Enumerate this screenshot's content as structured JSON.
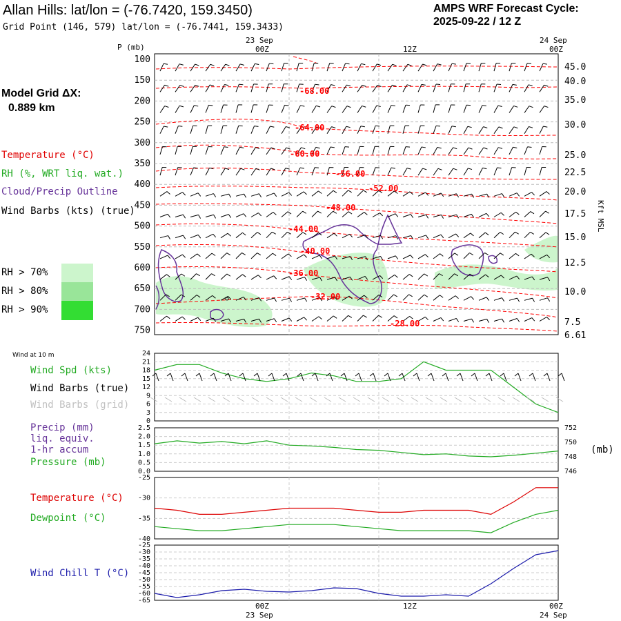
{
  "header": {
    "title": "Allan Hills:  lat/lon = (-76.7420, 159.3450)",
    "grid_point": "Grid Point (146, 579) lat/lon = (-76.7441, 159.3433)",
    "cycle_line1": "AMPS WRF Forecast Cycle:",
    "cycle_line2": "2025-09-22 / 12  Z"
  },
  "model_grid": {
    "label": "Model Grid ΔX:",
    "value": "0.889 km"
  },
  "legend": {
    "temperature": "Temperature (°C)",
    "rh": "RH (%, WRT liq. wat.)",
    "cloud": "Cloud/Precip Outline",
    "wind_barbs": "Wind Barbs (kts) (true)",
    "rh70": "RH > 70%",
    "rh80": "RH > 80%",
    "rh90": "RH > 90%",
    "colors": {
      "temperature": "#ff0000",
      "rh": "#22aa22",
      "cloud": "#663399",
      "rh70": "#ccf5cc",
      "rh80": "#99e599",
      "rh90": "#33dd33"
    }
  },
  "time_axis": {
    "top_dates": [
      "23 Sep",
      "24 Sep"
    ],
    "top_labels": [
      "00Z",
      "12Z",
      "00Z"
    ],
    "bottom_labels": [
      "00Z",
      "12Z",
      "00Z"
    ],
    "bottom_dates": [
      "23 Sep",
      "24 Sep"
    ]
  },
  "xsection": {
    "p_unit": "P (mb)",
    "pressure_ticks": [
      "100",
      "150",
      "200",
      "250",
      "300",
      "350",
      "400",
      "450",
      "500",
      "550",
      "600",
      "650",
      "700",
      "750"
    ],
    "height_ticks": [
      "45.0",
      "40.0",
      "35.0",
      "30.0",
      "25.0",
      "22.5",
      "20.0",
      "17.5",
      "15.0",
      "12.5",
      "10.0",
      "7.5",
      "6.61"
    ],
    "height_unit": "Kft MSL",
    "temp_labels": [
      "-68.00",
      "-64.00",
      "-60.00",
      "-56.00",
      "-52.00",
      "-48.00",
      "-44.00",
      "-40.00",
      "-36.00",
      "-32.00",
      "-28.00"
    ]
  },
  "wind_panel": {
    "title": "Wind at 10 m",
    "spd_label": "Wind Spd (kts)",
    "barbs_true": "Wind Barbs (true)",
    "barbs_grid": "Wind Barbs (grid)",
    "yticks": [
      "24",
      "21",
      "18",
      "15",
      "12",
      "9",
      "6",
      "3",
      "0"
    ]
  },
  "precip_panel": {
    "precip_label": "Precip (mm)",
    "liq": "liq. equiv.",
    "accum": "1-hr accum",
    "pressure_label": "Pressure (mb)",
    "left_ticks": [
      "2.5",
      "2.0",
      "1.5",
      "1.0",
      "0.5",
      "0.0"
    ],
    "right_ticks": [
      "752",
      "750",
      "748",
      "746"
    ],
    "unit": "(mb)"
  },
  "temp_panel": {
    "temp_label": "Temperature (°C)",
    "dew_label": "Dewpoint (°C)",
    "yticks": [
      "-25",
      "-30",
      "-35",
      "-40"
    ]
  },
  "chill_panel": {
    "label": "Wind Chill T (°C)",
    "yticks": [
      "-25",
      "-30",
      "-35",
      "-40",
      "-45",
      "-50",
      "-55",
      "-60",
      "-65"
    ]
  },
  "chart_data": [
    {
      "type": "line",
      "name": "wind_speed_10m",
      "x_hours": [
        0,
        3,
        6,
        9,
        12,
        15,
        18,
        21,
        24,
        27,
        30,
        33,
        36,
        39,
        42,
        45,
        48,
        51,
        54
      ],
      "series": [
        {
          "name": "Wind Spd (kts)",
          "values": [
            18,
            20,
            20,
            17,
            15,
            14,
            15,
            17,
            16,
            14,
            14,
            15,
            21,
            18,
            18,
            18,
            12,
            6,
            3
          ]
        }
      ],
      "ylim": [
        0,
        24
      ]
    },
    {
      "type": "line",
      "name": "pressure",
      "x_hours": [
        0,
        3,
        6,
        9,
        12,
        15,
        18,
        21,
        24,
        27,
        30,
        33,
        36,
        39,
        42,
        45,
        48,
        51,
        54
      ],
      "series": [
        {
          "name": "Pressure (mb)",
          "values": [
            749.8,
            750.2,
            749.9,
            750.1,
            749.8,
            750.2,
            749.6,
            749.5,
            749.3,
            749.0,
            748.9,
            748.6,
            748.3,
            748.4,
            748.1,
            748.0,
            748.2,
            748.5,
            748.8
          ]
        }
      ],
      "ylim": [
        746,
        752
      ]
    },
    {
      "type": "line",
      "name": "temperature_dewpoint",
      "x_hours": [
        0,
        3,
        6,
        9,
        12,
        15,
        18,
        21,
        24,
        27,
        30,
        33,
        36,
        39,
        42,
        45,
        48,
        51,
        54
      ],
      "series": [
        {
          "name": "Temperature (°C)",
          "values": [
            -32.5,
            -33,
            -34,
            -34,
            -33.5,
            -33,
            -32.5,
            -32.5,
            -32.5,
            -33,
            -33.5,
            -33.5,
            -33,
            -33,
            -33,
            -34,
            -31,
            -27.5,
            -27.5
          ]
        },
        {
          "name": "Dewpoint (°C)",
          "values": [
            -37,
            -37.5,
            -38,
            -38,
            -37.5,
            -37,
            -36.5,
            -36.5,
            -36.5,
            -37,
            -37.5,
            -38,
            -38,
            -38,
            -38,
            -38.5,
            -36,
            -34,
            -33
          ]
        }
      ],
      "ylim": [
        -40,
        -25
      ]
    },
    {
      "type": "line",
      "name": "wind_chill",
      "x_hours": [
        0,
        3,
        6,
        9,
        12,
        15,
        18,
        21,
        24,
        27,
        30,
        33,
        36,
        39,
        42,
        45,
        48,
        51,
        54
      ],
      "series": [
        {
          "name": "Wind Chill T (°C)",
          "values": [
            -60,
            -63,
            -61,
            -58,
            -57,
            -58.5,
            -59,
            -58,
            -56,
            -56.5,
            -60,
            -62,
            -62,
            -61,
            -62,
            -53,
            -42,
            -32,
            -29
          ]
        }
      ],
      "ylim": [
        -65,
        -25
      ]
    }
  ]
}
